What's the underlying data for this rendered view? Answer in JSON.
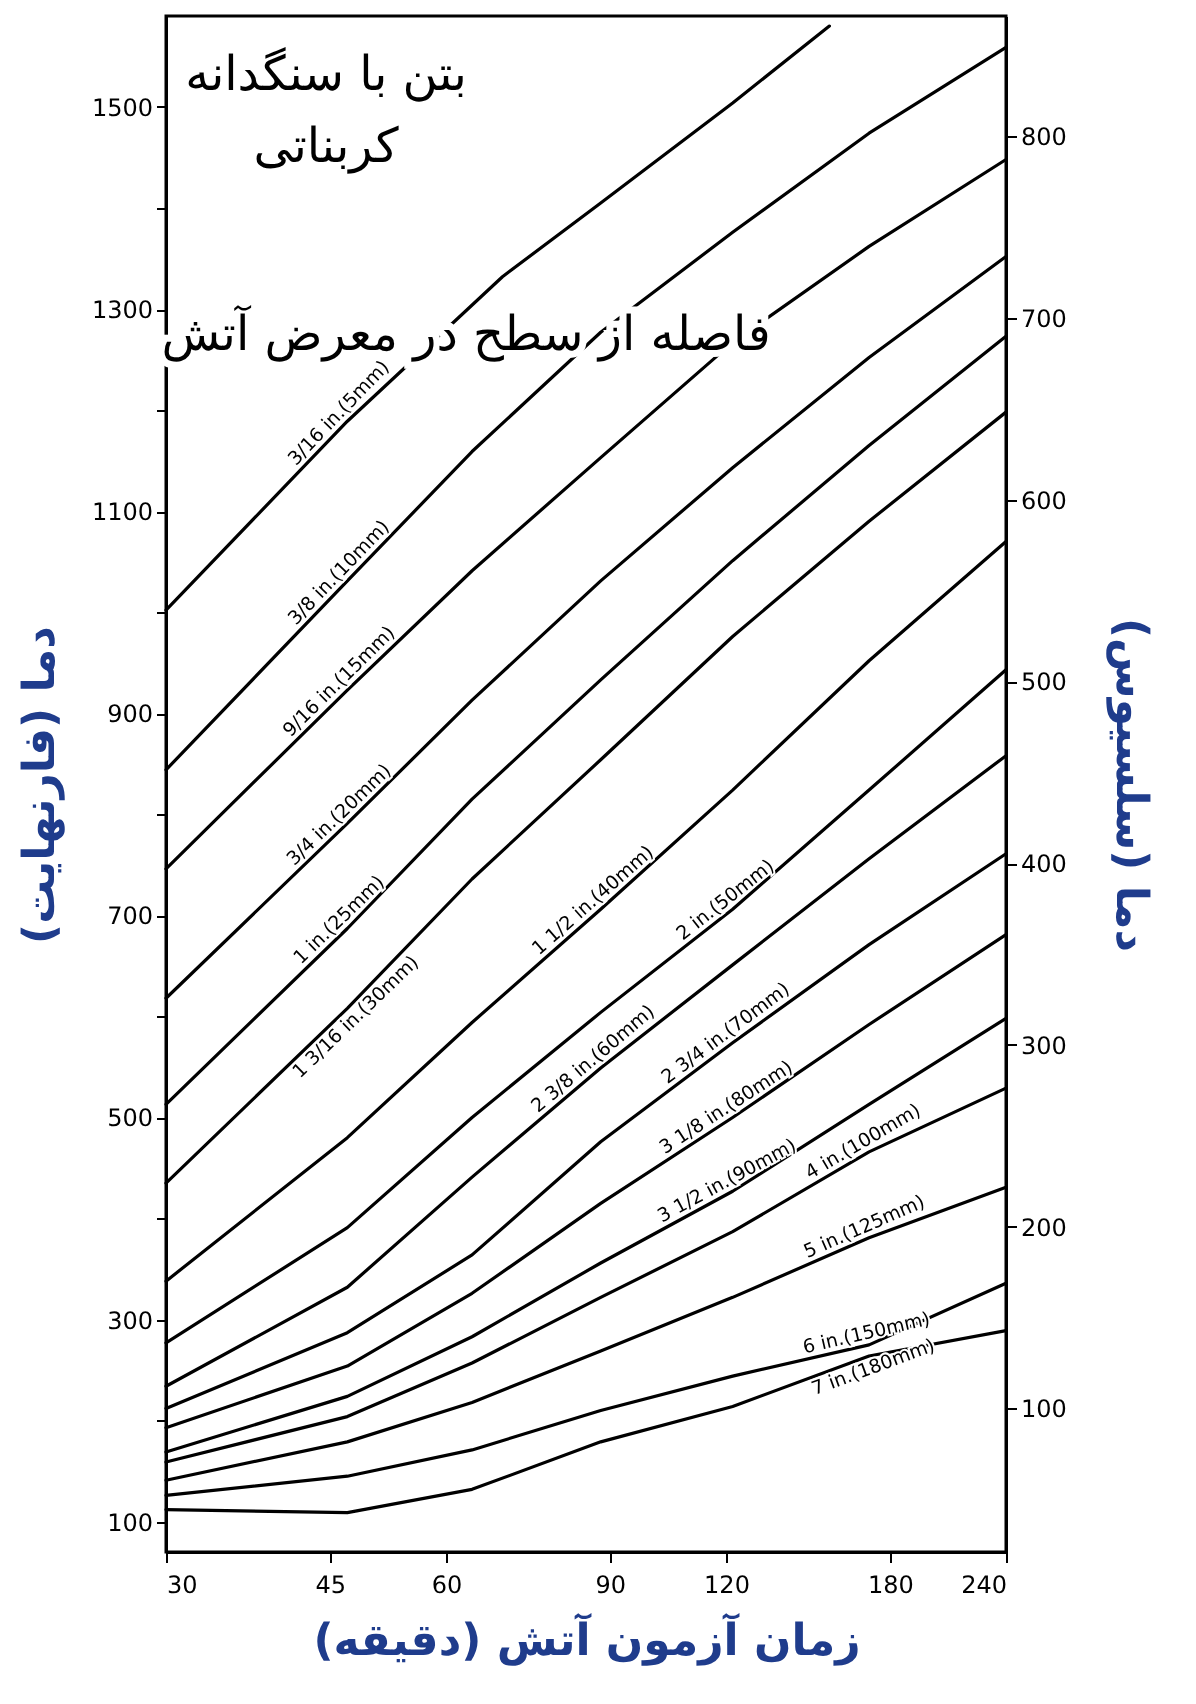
{
  "chart_data": {
    "type": "line",
    "xlabel": "زمان آزمون آتش (دقیقه)",
    "ylabel": "دما (فارنهایت)",
    "y2label": "دما (سلسیوس)",
    "log": "x",
    "x": [
      30,
      47,
      64,
      88,
      122,
      171,
      240
    ],
    "xlim": [
      30,
      240
    ],
    "xticks": [
      30,
      45,
      60,
      90,
      120,
      180,
      240
    ],
    "ylim": [
      70,
      1590
    ],
    "yticks": [
      100,
      {
        "value": 200,
        "label": null
      },
      300,
      {
        "value": 400,
        "label": null
      },
      500,
      {
        "value": 600,
        "label": null
      },
      700,
      {
        "value": 800,
        "label": null
      },
      900,
      {
        "value": 1000,
        "label": null
      },
      1100,
      {
        "value": 1200,
        "label": null
      },
      1300,
      {
        "value": 1400,
        "label": null
      },
      1500
    ],
    "y2lim": [
      21,
      866
    ],
    "y2ticks": [
      100,
      200,
      300,
      400,
      500,
      600,
      700,
      800
    ],
    "series": [
      {
        "name": "3/16 in.(5mm)",
        "color": "#000000",
        "x": [
          30,
          47,
          69,
          88,
          122,
          155
        ],
        "values": [
          1002,
          1189,
          1332,
          1405,
          1504,
          1580
        ]
      },
      {
        "name": "3/8 in.(10mm)",
        "color": "#000000",
        "values": [
          844,
          1031,
          1159,
          1277,
          1376,
          1474,
          1559
        ]
      },
      {
        "name": "9/16 in.(15mm)",
        "color": "#000000",
        "values": [
          746,
          923,
          1041,
          1153,
          1267,
          1362,
          1448
        ]
      },
      {
        "name": "3/4 in.(20mm)",
        "color": "#000000",
        "values": [
          618,
          791,
          913,
          1031,
          1143,
          1252,
          1352
        ]
      },
      {
        "name": "1 in.(25mm)",
        "color": "#000000",
        "values": [
          513,
          687,
          815,
          933,
          1051,
          1165,
          1273
        ]
      },
      {
        "name": "1 3/16 in.(30mm)",
        "color": "#000000",
        "values": [
          435,
          608,
          736,
          854,
          976,
          1090,
          1198
        ]
      },
      {
        "name": "1 1/2 in.(40mm)",
        "color": "#000000",
        "values": [
          338,
          480,
          594,
          706,
          824,
          952,
          1070
        ]
      },
      {
        "name": "2 in.(50mm)",
        "color": "#000000",
        "values": [
          277,
          391,
          500,
          604,
          706,
          824,
          943
        ]
      },
      {
        "name": "2 3/8 in.(60mm)",
        "color": "#000000",
        "values": [
          234,
          332,
          441,
          549,
          651,
          756,
          858
        ]
      },
      {
        "name": "2 3/4 in.(70mm)",
        "color": "#000000",
        "values": [
          212,
          287,
          364,
          476,
          574,
          671,
          761
        ]
      },
      {
        "name": "3 1/8 in.(80mm)",
        "color": "#000000",
        "values": [
          193,
          254,
          326,
          415,
          500,
          592,
          681
        ]
      },
      {
        "name": "3 1/2 in.(90mm)",
        "color": "#000000",
        "values": [
          169,
          224,
          283,
          356,
          427,
          513,
          598
        ]
      },
      {
        "name": "4 in.(100mm)",
        "color": "#000000",
        "values": [
          159,
          204,
          257,
          322,
          387,
          466,
          529
        ]
      },
      {
        "name": "5 in.(125mm)",
        "color": "#000000",
        "values": [
          141,
          179,
          218,
          269,
          322,
          381,
          431
        ]
      },
      {
        "name": "6 in.(150mm)",
        "color": "#000000",
        "values": [
          126,
          145,
          171,
          210,
          244,
          275,
          336
        ]
      },
      {
        "name": "7 in.(180mm)",
        "color": "#000000",
        "values": [
          112,
          109,
          132,
          179,
          214,
          264,
          289
        ]
      }
    ],
    "annotations": [
      "بتن با سنگدانه\nکربناتی",
      "فاصله از سطح در معرض آتش"
    ]
  }
}
